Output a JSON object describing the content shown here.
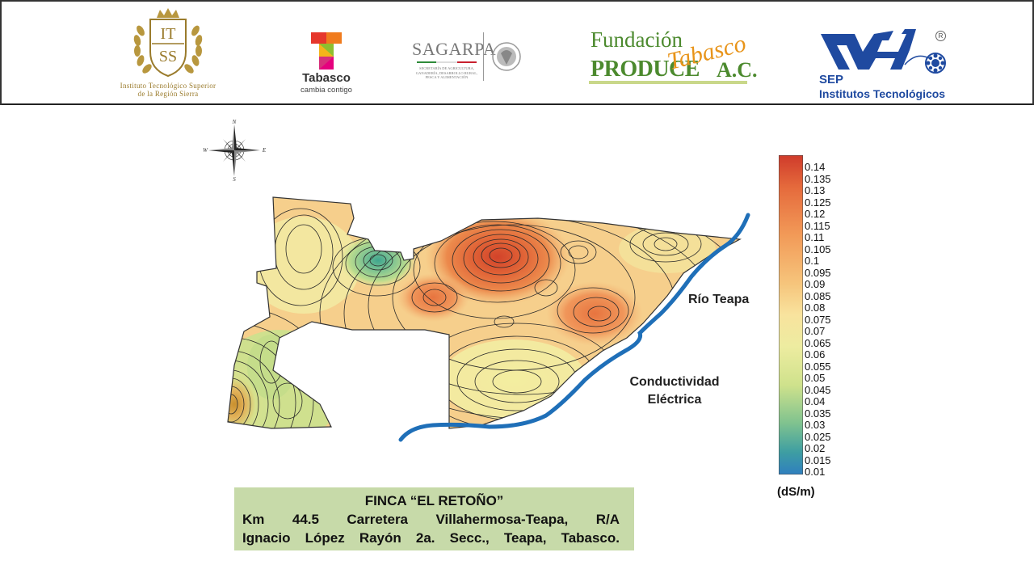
{
  "header": {
    "itss": {
      "monogram": "IT SS",
      "caption_line1": "Instituto Tecnológico Superior",
      "caption_line2": "de la Región Sierra",
      "color": "#9a7b2c"
    },
    "tabasco": {
      "name": "Tabasco",
      "slogan": "cambia contigo"
    },
    "sagarpa": {
      "name": "SAGARPA",
      "subtitle_line1": "SECRETARÍA DE AGRICULTURA,",
      "subtitle_line2": "GANADERÍA, DESARROLLO RURAL,",
      "subtitle_line3": "PESCA Y ALIMENTACIÓN"
    },
    "fundacion": {
      "line1": "Fundación",
      "line2": "PRODUCE",
      "script": "Tabasco",
      "suffix": "A.C."
    },
    "sep": {
      "name": "SEP",
      "subtitle": "Institutos Tecnológicos",
      "registered": "R"
    }
  },
  "compass": {
    "n": "N",
    "s": "S",
    "e": "E",
    "w": "W"
  },
  "map": {
    "river_label": "Río Teapa",
    "caption_line1": "Conductividad",
    "caption_line2": "Eléctrica",
    "river_color": "#1f6fb8"
  },
  "legend": {
    "ticks": [
      "0.14",
      "0.135",
      "0.13",
      "0.125",
      "0.12",
      "0.115",
      "0.11",
      "0.105",
      "0.1",
      "0.095",
      "0.09",
      "0.085",
      "0.08",
      "0.075",
      "0.07",
      "0.065",
      "0.06",
      "0.055",
      "0.05",
      "0.045",
      "0.04",
      "0.035",
      "0.03",
      "0.025",
      "0.02",
      "0.015",
      "0.01"
    ],
    "unit": "(dS/m)",
    "min": 0.01,
    "max": 0.14
  },
  "info": {
    "title": "FINCA “EL RETOÑO”",
    "line1": "Km 44.5 Carretera Villahermosa-Teapa, R/A",
    "line2": "Ignacio López Rayón 2a. Secc., Teapa, Tabasco."
  }
}
